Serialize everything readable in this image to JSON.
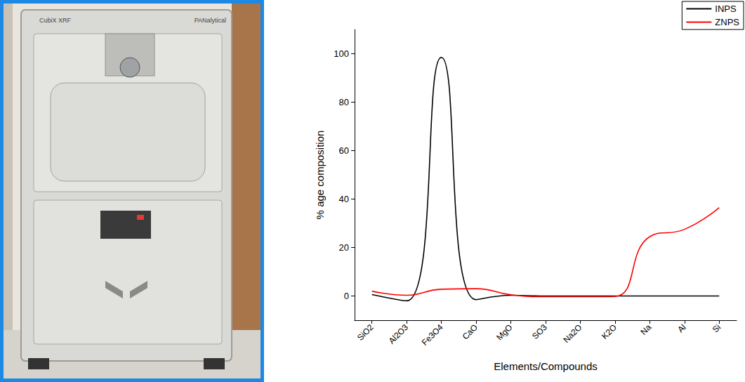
{
  "chart_data": {
    "type": "line",
    "xlabel": "Elements/Compounds",
    "ylabel": "% age composition",
    "categories": [
      "SiO2",
      "Al2O3",
      "Fe3O4",
      "CaO",
      "MgO",
      "SO3",
      "Na2O",
      "K2O",
      "Na",
      "Al",
      "Si"
    ],
    "series": [
      {
        "name": "INPS",
        "color": "#000000",
        "values": [
          0.6,
          -2,
          98.5,
          -1.5,
          0.3,
          0,
          0,
          0,
          0,
          0,
          0
        ]
      },
      {
        "name": "ZNPS",
        "color": "#ff0000",
        "values": [
          2,
          0.3,
          2.8,
          3,
          0.5,
          -0.3,
          -0.3,
          -0.2,
          24.5,
          27.5,
          36.5
        ]
      }
    ],
    "ylim": [
      -10,
      110
    ],
    "yticks": [
      0,
      20,
      40,
      60,
      80,
      100
    ],
    "grid": false,
    "legend": "upper right",
    "marker": "none",
    "line_style": "solid"
  },
  "photo": {
    "texts": [
      "CubiX XRF",
      "PANalytical"
    ]
  }
}
